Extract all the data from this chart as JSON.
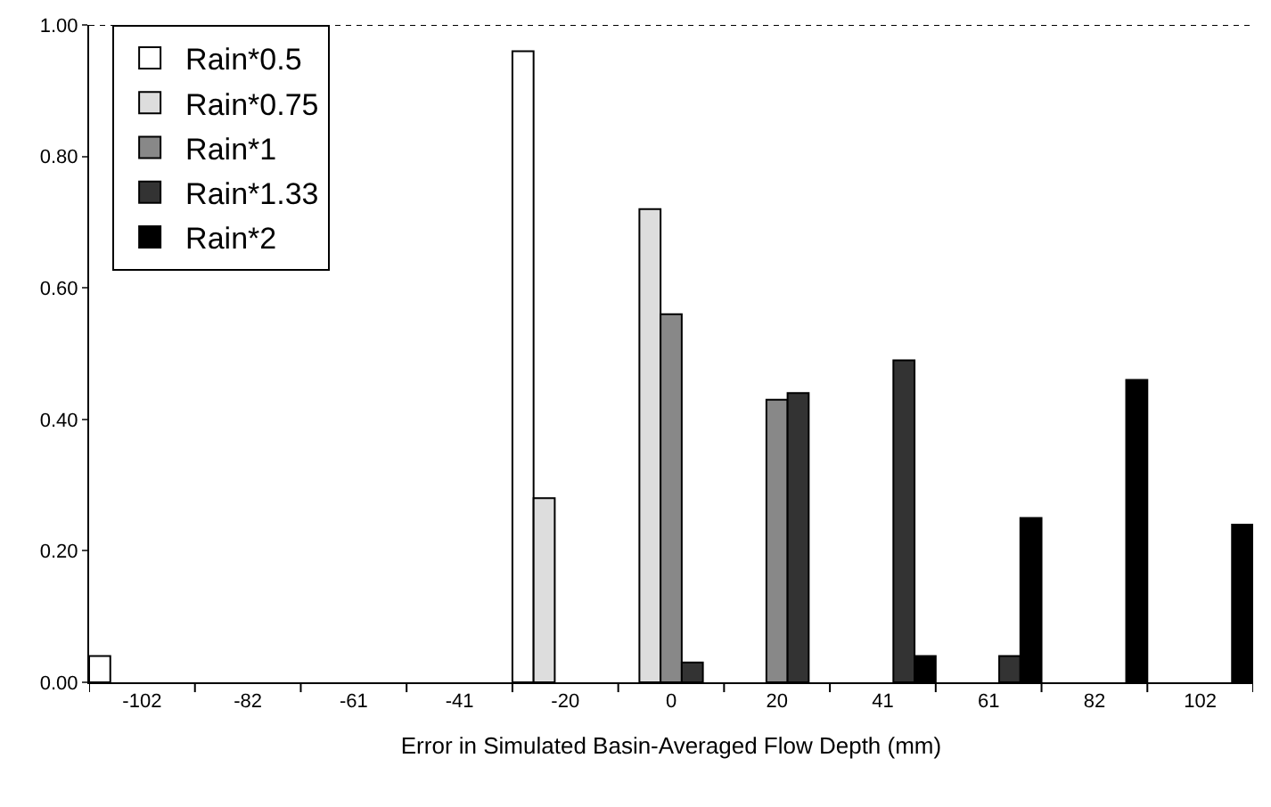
{
  "chart_data": {
    "type": "bar",
    "xlabel": "Error in Simulated Basin-Averaged Flow Depth (mm)",
    "categories": [
      "-102",
      "-82",
      "-61",
      "-41",
      "-20",
      "0",
      "20",
      "41",
      "61",
      "82",
      "102"
    ],
    "series": [
      {
        "name": "Rain*0.5",
        "color": "#ffffff",
        "values": [
          0.04,
          null,
          null,
          null,
          0.96,
          null,
          null,
          null,
          null,
          null,
          null
        ]
      },
      {
        "name": "Rain*0.75",
        "color": "#dddddd",
        "values": [
          null,
          null,
          null,
          null,
          0.28,
          0.72,
          null,
          null,
          null,
          null,
          null
        ]
      },
      {
        "name": "Rain*1",
        "color": "#888888",
        "values": [
          null,
          null,
          null,
          null,
          null,
          0.56,
          0.43,
          null,
          null,
          null,
          null
        ]
      },
      {
        "name": "Rain*1.33",
        "color": "#333333",
        "values": [
          null,
          null,
          null,
          null,
          null,
          0.03,
          0.44,
          0.49,
          0.04,
          null,
          null
        ]
      },
      {
        "name": "Rain*2",
        "color": "#000000",
        "values": [
          null,
          null,
          null,
          null,
          null,
          null,
          null,
          0.04,
          0.25,
          0.46,
          0.24
        ]
      }
    ],
    "ylim": [
      0,
      1
    ],
    "yticks": [
      {
        "value": 0,
        "label": "0.00"
      },
      {
        "value": 0.2,
        "label": "0.20"
      },
      {
        "value": 0.4,
        "label": "0.40"
      },
      {
        "value": 0.6,
        "label": "0.60"
      },
      {
        "value": 0.8,
        "label": "0.80"
      },
      {
        "value": 1,
        "label": "1.00"
      }
    ],
    "grid": false,
    "legend": "top left"
  }
}
